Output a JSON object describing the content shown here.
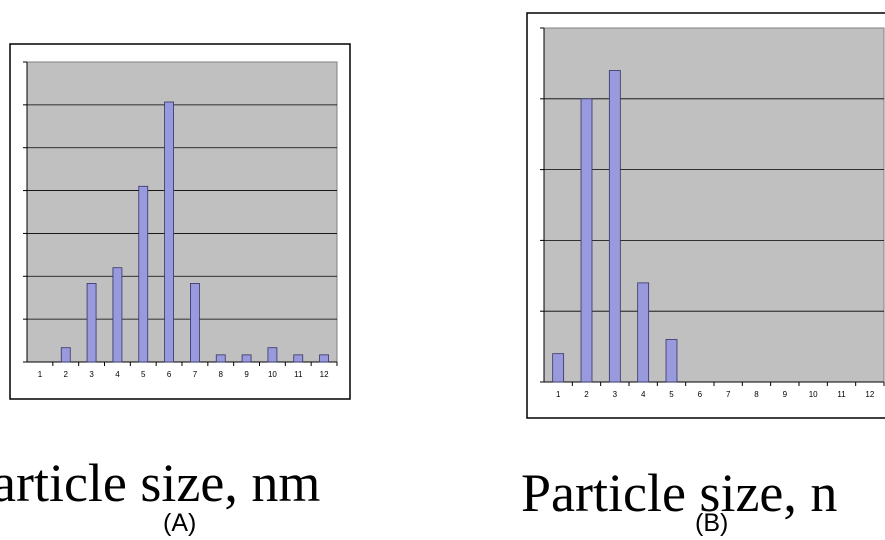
{
  "chart_data": [
    {
      "type": "bar",
      "categories": [
        "1",
        "2",
        "3",
        "4",
        "5",
        "6",
        "7",
        "8",
        "9",
        "10",
        "11",
        "12"
      ],
      "values": [
        0,
        1,
        5.5,
        6.6,
        12.3,
        18.2,
        5.5,
        0.5,
        0.5,
        1,
        0.5,
        0.5
      ],
      "ylim": [
        0,
        21
      ],
      "grid": true,
      "bar_color": "#9999dd",
      "plot_background": "#c0c0c0",
      "xlabel": "article size, nm",
      "caption": "(A)"
    },
    {
      "type": "bar",
      "categories": [
        "1",
        "2",
        "3",
        "4",
        "5",
        "6",
        "7",
        "8",
        "9",
        "10",
        "11",
        "12"
      ],
      "values": [
        4,
        40,
        44,
        14,
        6,
        0,
        0,
        0,
        0,
        0,
        0,
        0
      ],
      "ylim": [
        0,
        50
      ],
      "grid": true,
      "bar_color": "#9999dd",
      "plot_background": "#c0c0c0",
      "xlabel": "Particle size, n",
      "caption": "(B)"
    }
  ]
}
